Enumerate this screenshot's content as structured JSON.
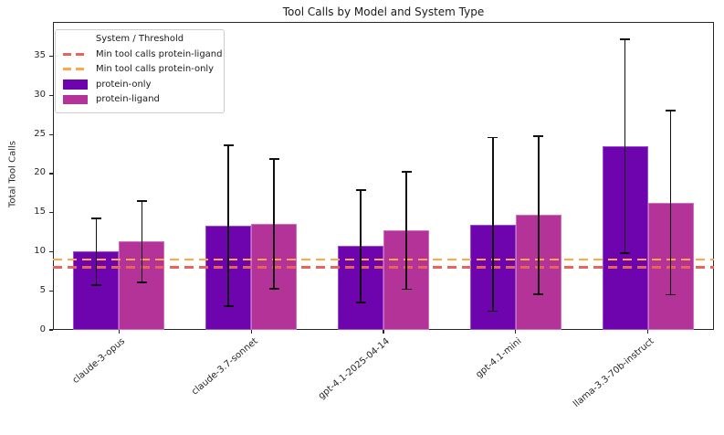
{
  "title": "Tool Calls by Model and System Type",
  "ylabel": "Total Tool Calls",
  "legend": {
    "title": "System / Threshold",
    "items": [
      {
        "type": "dash",
        "color": "#e8635a",
        "label": "Min tool calls protein-ligand"
      },
      {
        "type": "dash",
        "color": "#ffa749",
        "label": "Min tool calls protein-only"
      },
      {
        "type": "patch",
        "color": "#6d04ad",
        "label": "protein-only"
      },
      {
        "type": "patch",
        "color": "#b43399",
        "label": "protein-ligand"
      }
    ]
  },
  "chart_data": {
    "type": "bar",
    "title": "Tool Calls by Model and System Type",
    "xlabel": "",
    "ylabel": "Total Tool Calls",
    "categories": [
      "claude-3-opus",
      "claude-3.7-sonnet",
      "gpt-4.1-2025-04-14",
      "gpt-4.1-mini",
      "llama-3.3-70b-instruct"
    ],
    "series": [
      {
        "name": "protein-only",
        "color": "#6d04ad",
        "edge_color": "#9a4fd0",
        "values": [
          10.0,
          13.3,
          10.7,
          13.5,
          23.5
        ],
        "errors": [
          4.3,
          10.3,
          7.2,
          11.1,
          13.7
        ]
      },
      {
        "name": "protein-ligand",
        "color": "#b43399",
        "edge_color": "#cf6ec2",
        "values": [
          11.3,
          13.6,
          12.7,
          14.7,
          16.3
        ],
        "errors": [
          5.2,
          8.3,
          7.5,
          10.1,
          11.8
        ]
      }
    ],
    "thresholds": [
      {
        "label": "Min tool calls protein-ligand",
        "value": 8,
        "color": "#e8635a"
      },
      {
        "label": "Min tool calls protein-only",
        "value": 9,
        "color": "#ffa749"
      }
    ],
    "yticks": [
      0,
      5,
      10,
      15,
      20,
      25,
      30,
      35
    ],
    "ylim": [
      0,
      39.4
    ],
    "grid": false,
    "legend_position": "upper-left",
    "error_bar_color": "#111111"
  }
}
